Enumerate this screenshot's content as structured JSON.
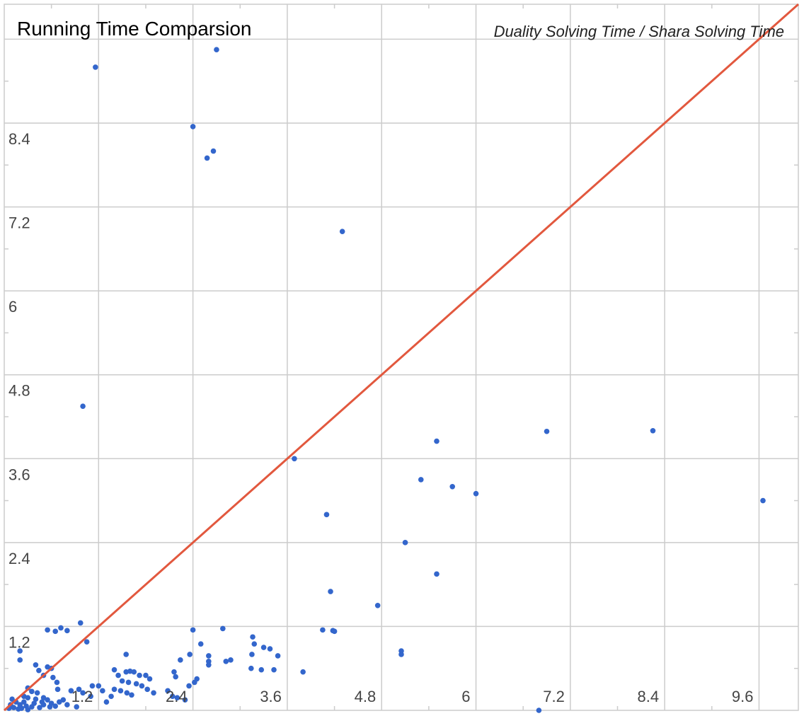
{
  "chart_data": {
    "type": "scatter",
    "title": "Running Time Comparsion",
    "subtitle": "Duality Solving Time / Shara Solving Time",
    "xlabel": "",
    "ylabel": "",
    "xlim": [
      0,
      10.1
    ],
    "ylim": [
      0,
      10.1
    ],
    "x_ticks": [
      "1.2",
      "2.4",
      "3.6",
      "4.8",
      "6",
      "7.2",
      "8.4",
      "9.6"
    ],
    "y_ticks": [
      "1.2",
      "2.4",
      "3.6",
      "4.8",
      "6",
      "7.2",
      "8.4"
    ],
    "grid": true,
    "legend": "none",
    "colors": {
      "points": "#3366cc",
      "reference_line": "#e2583e",
      "grid": "#cccccc"
    },
    "reference_line": {
      "from": [
        0,
        0
      ],
      "to": [
        10.1,
        10.1
      ]
    },
    "series": [
      {
        "points": [
          [
            1.16,
            9.2
          ],
          [
            2.7,
            9.45
          ],
          [
            2.4,
            8.35
          ],
          [
            2.66,
            8.0
          ],
          [
            2.58,
            7.9
          ],
          [
            4.3,
            6.85
          ],
          [
            1.0,
            4.35
          ],
          [
            3.69,
            3.6
          ],
          [
            5.5,
            3.85
          ],
          [
            6.9,
            3.99
          ],
          [
            8.25,
            4.0
          ],
          [
            9.65,
            3.0
          ],
          [
            5.3,
            3.3
          ],
          [
            5.7,
            3.2
          ],
          [
            6.0,
            3.1
          ],
          [
            4.1,
            2.8
          ],
          [
            5.1,
            2.4
          ],
          [
            5.5,
            1.95
          ],
          [
            4.15,
            1.7
          ],
          [
            4.75,
            1.5
          ],
          [
            4.05,
            1.15
          ],
          [
            4.18,
            1.14
          ],
          [
            4.2,
            1.13
          ],
          [
            5.05,
            0.85
          ],
          [
            5.05,
            0.8
          ],
          [
            3.8,
            0.55
          ],
          [
            2.4,
            1.15
          ],
          [
            2.78,
            1.17
          ],
          [
            2.5,
            0.95
          ],
          [
            2.36,
            0.8
          ],
          [
            2.6,
            0.78
          ],
          [
            2.6,
            0.7
          ],
          [
            2.6,
            0.65
          ],
          [
            2.82,
            0.7
          ],
          [
            2.88,
            0.72
          ],
          [
            3.16,
            1.05
          ],
          [
            3.18,
            0.95
          ],
          [
            3.15,
            0.8
          ],
          [
            3.3,
            0.9
          ],
          [
            3.38,
            0.88
          ],
          [
            3.48,
            0.78
          ],
          [
            3.14,
            0.6
          ],
          [
            3.27,
            0.58
          ],
          [
            3.43,
            0.58
          ],
          [
            2.24,
            0.72
          ],
          [
            2.16,
            0.55
          ],
          [
            2.18,
            0.48
          ],
          [
            2.45,
            0.45
          ],
          [
            2.42,
            0.4
          ],
          [
            2.35,
            0.35
          ],
          [
            2.08,
            0.28
          ],
          [
            2.14,
            0.2
          ],
          [
            2.2,
            0.18
          ],
          [
            2.3,
            0.15
          ],
          [
            1.55,
            0.8
          ],
          [
            1.4,
            0.58
          ],
          [
            1.45,
            0.5
          ],
          [
            1.55,
            0.55
          ],
          [
            1.6,
            0.56
          ],
          [
            1.65,
            0.55
          ],
          [
            1.72,
            0.5
          ],
          [
            1.8,
            0.5
          ],
          [
            1.85,
            0.45
          ],
          [
            1.5,
            0.42
          ],
          [
            1.58,
            0.4
          ],
          [
            1.68,
            0.38
          ],
          [
            1.75,
            0.35
          ],
          [
            1.82,
            0.3
          ],
          [
            1.9,
            0.25
          ],
          [
            1.48,
            0.28
          ],
          [
            1.56,
            0.25
          ],
          [
            1.62,
            0.22
          ],
          [
            1.4,
            0.3
          ],
          [
            1.36,
            0.2
          ],
          [
            1.3,
            0.12
          ],
          [
            1.25,
            0.28
          ],
          [
            1.2,
            0.35
          ],
          [
            1.1,
            0.2
          ],
          [
            1.12,
            0.35
          ],
          [
            1.0,
            0.25
          ],
          [
            0.95,
            0.3
          ],
          [
            0.92,
            0.05
          ],
          [
            0.55,
            1.15
          ],
          [
            0.65,
            1.13
          ],
          [
            0.72,
            1.18
          ],
          [
            0.8,
            1.14
          ],
          [
            0.97,
            1.25
          ],
          [
            1.05,
            0.98
          ],
          [
            0.2,
            0.85
          ],
          [
            0.2,
            0.72
          ],
          [
            0.4,
            0.65
          ],
          [
            0.55,
            0.62
          ],
          [
            0.6,
            0.6
          ],
          [
            0.44,
            0.57
          ],
          [
            0.5,
            0.5
          ],
          [
            0.62,
            0.47
          ],
          [
            0.67,
            0.4
          ],
          [
            0.68,
            0.3
          ],
          [
            0.85,
            0.28
          ],
          [
            0.3,
            0.32
          ],
          [
            0.35,
            0.27
          ],
          [
            0.42,
            0.25
          ],
          [
            0.25,
            0.2
          ],
          [
            0.3,
            0.18
          ],
          [
            0.4,
            0.16
          ],
          [
            0.5,
            0.18
          ],
          [
            0.55,
            0.15
          ],
          [
            0.48,
            0.12
          ],
          [
            0.6,
            0.1
          ],
          [
            0.7,
            0.12
          ],
          [
            0.75,
            0.15
          ],
          [
            0.8,
            0.08
          ],
          [
            0.15,
            0.12
          ],
          [
            0.2,
            0.08
          ],
          [
            0.28,
            0.06
          ],
          [
            0.35,
            0.05
          ],
          [
            0.45,
            0.04
          ],
          [
            0.58,
            0.05
          ],
          [
            0.65,
            0.06
          ],
          [
            0.12,
            0.04
          ],
          [
            0.18,
            0.02
          ],
          [
            0.22,
            0.03
          ],
          [
            0.3,
            0.01
          ],
          [
            0.1,
            0.16
          ],
          [
            0.08,
            0.08
          ],
          [
            0.06,
            0.03
          ],
          [
            0.25,
            0.12
          ],
          [
            0.38,
            0.1
          ],
          [
            0.5,
            0.08
          ],
          [
            6.8,
            0.0
          ]
        ]
      }
    ]
  }
}
